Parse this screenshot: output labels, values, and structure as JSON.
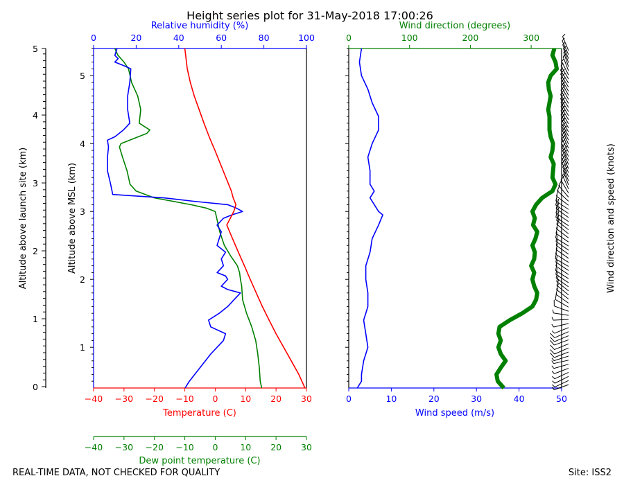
{
  "title": "Height series plot for 31-May-2018 17:00:26",
  "footer_left": "REAL-TIME DATA, NOT CHECKED FOR QUALITY",
  "footer_right": "Site: ISS2",
  "colors": {
    "temperature": "#ff0000",
    "dewpoint": "#008000",
    "rh": "#0000ff",
    "wind_speed": "#0000ff",
    "wind_dir": "#008000",
    "barbs": "#000000"
  },
  "chart_data": [
    {
      "type": "line",
      "title": "Thermodynamic profile",
      "xlabel_bottom": "Temperature (C)",
      "xlabel_dewpoint": "Dew point temperature (C)",
      "xlabel_top": "Relative humidity (%)",
      "ylabel_outer": "Altitude above launch site (km)",
      "ylabel_inner": "Altitude above MSL (km)",
      "xlim": [
        -40,
        30
      ],
      "rh_lim": [
        0,
        100
      ],
      "ylim_msl": [
        0.4,
        5.4
      ],
      "temp_ticks": [
        -40,
        -30,
        -20,
        -10,
        0,
        10,
        20,
        30
      ],
      "dew_ticks": [
        -40,
        -30,
        -20,
        -10,
        0,
        10,
        20,
        30
      ],
      "rh_ticks": [
        0,
        20,
        40,
        60,
        80,
        100
      ],
      "msl_ticks": [
        1,
        2,
        3,
        4,
        5
      ],
      "msl_tick_labels": [
        "1",
        "2",
        "3",
        "4",
        "5"
      ],
      "agl_ticks": [
        0,
        1,
        2,
        3,
        4,
        5
      ],
      "agl_tick_labels": [
        "0",
        "1",
        "2",
        "3",
        "4",
        "5"
      ],
      "agl_offset_km": 0.42,
      "series": [
        {
          "name": "Temperature",
          "unit": "C",
          "alt": [
            0.4,
            0.6,
            0.8,
            1.0,
            1.2,
            1.4,
            1.6,
            1.8,
            2.0,
            2.2,
            2.4,
            2.6,
            2.8,
            3.0,
            3.1,
            3.2,
            3.3,
            3.5,
            3.7,
            3.9,
            4.1,
            4.3,
            4.5,
            4.7,
            4.9,
            5.1,
            5.4
          ],
          "values": [
            29.5,
            27.5,
            25.0,
            22.5,
            20.0,
            17.7,
            15.5,
            13.5,
            11.5,
            9.6,
            7.6,
            5.7,
            3.8,
            6.1,
            6.8,
            5.9,
            5.3,
            3.5,
            1.7,
            -0.1,
            -2.0,
            -3.7,
            -5.3,
            -6.9,
            -8.2,
            -9.2,
            -10.0
          ]
        },
        {
          "name": "Dew point",
          "unit": "C",
          "alt": [
            0.4,
            0.5,
            0.7,
            0.9,
            1.1,
            1.3,
            1.5,
            1.7,
            1.9,
            2.0,
            2.1,
            2.2,
            2.35,
            2.5,
            2.7,
            2.9,
            3.0,
            3.05,
            3.1,
            3.2,
            3.3,
            3.4,
            3.6,
            3.8,
            3.95,
            4.0,
            4.15,
            4.2,
            4.3,
            4.5,
            4.7,
            4.9,
            5.1,
            5.2,
            5.3,
            5.4
          ],
          "values": [
            15.3,
            14.8,
            14.5,
            14.0,
            13.3,
            12.0,
            10.3,
            9.0,
            8.7,
            8.3,
            8.0,
            7.3,
            5.0,
            3.0,
            1.5,
            0.5,
            0.0,
            -3.0,
            -8.0,
            -20.0,
            -26.0,
            -28.0,
            -29.0,
            -30.5,
            -31.5,
            -31.0,
            -22.5,
            -21.5,
            -25.0,
            -24.5,
            -25.5,
            -27.5,
            -28.5,
            -30.0,
            -32.0,
            -33.0
          ]
        },
        {
          "name": "Relative humidity",
          "unit": "%",
          "alt": [
            0.4,
            0.5,
            0.7,
            0.9,
            1.1,
            1.2,
            1.3,
            1.4,
            1.5,
            1.6,
            1.7,
            1.8,
            1.85,
            1.9,
            2.0,
            2.05,
            2.1,
            2.2,
            2.3,
            2.4,
            2.5,
            2.6,
            2.7,
            2.8,
            2.9,
            2.95,
            3.0,
            3.05,
            3.1,
            3.15,
            3.2,
            3.25,
            3.4,
            3.6,
            3.8,
            3.95,
            4.05,
            4.1,
            4.2,
            4.3,
            4.5,
            4.7,
            4.9,
            5.1,
            5.15,
            5.2,
            5.25,
            5.3,
            5.4
          ],
          "values": [
            43.0,
            45.0,
            50.0,
            55.0,
            61.0,
            62.0,
            55.0,
            54.0,
            59.0,
            63.0,
            66.0,
            69.0,
            63.0,
            60.0,
            63.0,
            62.0,
            58.0,
            61.0,
            60.0,
            62.0,
            58.0,
            59.0,
            60.0,
            58.0,
            61.0,
            65.0,
            70.0,
            67.0,
            63.0,
            47.0,
            33.0,
            9.0,
            8.0,
            6.5,
            6.5,
            7.0,
            6.5,
            10.0,
            14.0,
            17.0,
            16.0,
            16.0,
            17.0,
            17.5,
            14.0,
            10.0,
            11.5,
            10.0,
            11.0
          ]
        }
      ]
    },
    {
      "type": "line",
      "title": "Wind profile",
      "xlabel_bottom": "Wind speed (m/s)",
      "xlabel_top": "Wind direction (degrees)",
      "barb_label": "Wind direction and speed (knots)",
      "xlim": [
        0,
        50
      ],
      "dir_lim": [
        0,
        350
      ],
      "speed_ticks": [
        0,
        10,
        20,
        30,
        40,
        50
      ],
      "dir_ticks": [
        0,
        100,
        200,
        300
      ],
      "series": [
        {
          "name": "Wind speed",
          "unit": "m/s",
          "alt": [
            0.4,
            0.5,
            0.6,
            0.8,
            1.0,
            1.2,
            1.4,
            1.5,
            1.6,
            1.8,
            2.0,
            2.2,
            2.4,
            2.6,
            2.8,
            2.95,
            3.0,
            3.2,
            3.3,
            3.4,
            3.6,
            3.8,
            4.0,
            4.2,
            4.4,
            4.6,
            4.8,
            5.0,
            5.2,
            5.4
          ],
          "values": [
            2.0,
            3.0,
            3.0,
            3.5,
            4.5,
            4.0,
            3.5,
            4.0,
            4.5,
            4.5,
            4.0,
            4.0,
            5.0,
            5.5,
            7.0,
            8.0,
            7.0,
            5.0,
            6.0,
            5.0,
            5.0,
            4.5,
            5.5,
            7.0,
            7.0,
            5.5,
            4.5,
            3.0,
            2.5,
            3.0
          ]
        },
        {
          "name": "Wind direction",
          "unit": "degrees",
          "alt": [
            0.4,
            0.5,
            0.6,
            0.7,
            0.8,
            0.9,
            1.0,
            1.1,
            1.2,
            1.3,
            1.4,
            1.5,
            1.6,
            1.7,
            1.8,
            1.9,
            2.0,
            2.1,
            2.2,
            2.3,
            2.4,
            2.5,
            2.6,
            2.7,
            2.8,
            2.9,
            3.0,
            3.1,
            3.2,
            3.3,
            3.4,
            3.5,
            3.6,
            3.7,
            3.8,
            3.9,
            4.0,
            4.1,
            4.2,
            4.3,
            4.4,
            4.5,
            4.6,
            4.7,
            4.8,
            4.9,
            5.0,
            5.1,
            5.2,
            5.3,
            5.4
          ],
          "values": [
            255,
            245,
            243,
            250,
            258,
            250,
            246,
            250,
            246,
            248,
            265,
            285,
            302,
            308,
            310,
            305,
            302,
            305,
            300,
            305,
            306,
            302,
            307,
            310,
            303,
            306,
            302,
            308,
            318,
            335,
            340,
            335,
            336,
            337,
            332,
            335,
            336,
            332,
            330,
            330,
            330,
            328,
            330,
            332,
            329,
            328,
            332,
            342,
            340,
            335,
            338
          ]
        }
      ]
    }
  ]
}
